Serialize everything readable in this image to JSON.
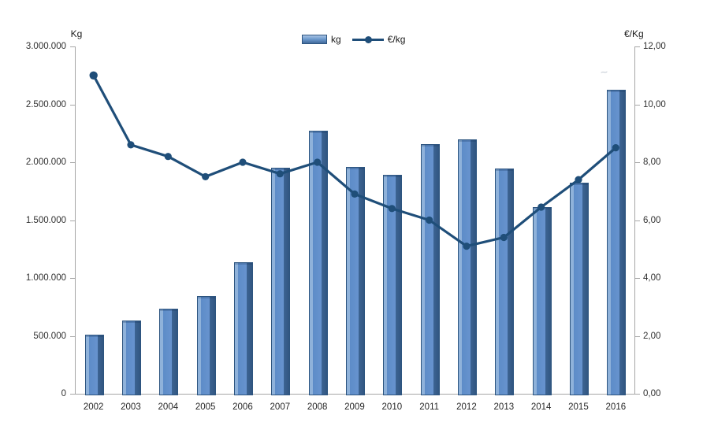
{
  "chart_data": {
    "type": "combo-bar-line",
    "title": "",
    "categories": [
      "2002",
      "2003",
      "2004",
      "2005",
      "2006",
      "2007",
      "2008",
      "2009",
      "2010",
      "2011",
      "2012",
      "2013",
      "2014",
      "2015",
      "2016"
    ],
    "series": [
      {
        "name": "kg",
        "type": "bar",
        "axis": "left",
        "values": [
          510000,
          635000,
          735000,
          845000,
          1135000,
          1950000,
          2270000,
          1960000,
          1890000,
          2160000,
          2200000,
          1945000,
          1610000,
          1825000,
          2625000
        ]
      },
      {
        "name": "€/kg",
        "type": "line",
        "axis": "right",
        "values": [
          11.0,
          8.6,
          8.2,
          7.5,
          8.0,
          7.6,
          8.0,
          6.9,
          6.4,
          6.0,
          5.1,
          5.4,
          6.45,
          7.4,
          8.5
        ]
      }
    ],
    "left_axis": {
      "title": "Kg",
      "min": 0,
      "max": 3000000,
      "step": 500000,
      "tick_labels_top_to_bottom": [
        "3.000.000",
        "2.500.000",
        "2.000.000",
        "1.500.000",
        "1.000.000",
        "500.000",
        "0"
      ]
    },
    "right_axis": {
      "title": "€/Kg",
      "min": 0,
      "max": 12,
      "step": 2,
      "tick_labels_top_to_bottom": [
        "12,00",
        "10,00",
        "8,00",
        "6,00",
        "4,00",
        "2,00",
        "0,00"
      ]
    },
    "grid": false,
    "legend_position": "top-center"
  },
  "legend": {
    "bar_label": "kg",
    "line_label": "€/kg"
  },
  "colors": {
    "bar_fill": "#5d8cc8",
    "bar_highlight": "#8fb2da",
    "bar_shadow": "#315681",
    "bar_border": "#2d5580",
    "line": "#1f4e79",
    "marker": "#1f4e79",
    "axis": "#a6a6a6",
    "text": "#303030"
  },
  "artifact": {
    "smudge_glyph": "~"
  }
}
